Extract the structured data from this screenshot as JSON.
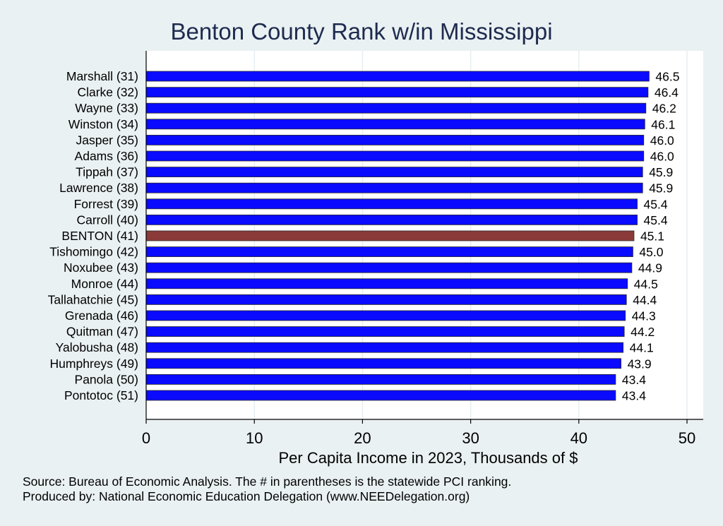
{
  "title": "Benton County Rank w/in Mississippi",
  "footer": {
    "source": "Source: Bureau of Economic Analysis. The # in parentheses is the statewide PCI ranking.",
    "produced": "Produced by: National Economic Education Delegation (www.NEEDelegation.org)"
  },
  "colors": {
    "background": "#eaf1f3",
    "plot_background": "#ffffff",
    "bar": "#0a0aff",
    "highlight_bar": "#8b3a3a",
    "title": "#1e2b4e"
  },
  "chart_data": {
    "type": "bar",
    "orientation": "horizontal",
    "title": "Benton County Rank w/in Mississippi",
    "xlabel": "Per Capita Income in 2023, Thousands of $",
    "ylabel": "",
    "xlim": [
      0,
      51.5
    ],
    "xticks": [
      0,
      10,
      20,
      30,
      40,
      50
    ],
    "grid": true,
    "highlight": "BENTON (41)",
    "categories": [
      "Marshall (31)",
      "Clarke (32)",
      "Wayne (33)",
      "Winston (34)",
      "Jasper (35)",
      "Adams (36)",
      "Tippah (37)",
      "Lawrence (38)",
      "Forrest (39)",
      "Carroll (40)",
      "BENTON (41)",
      "Tishomingo (42)",
      "Noxubee (43)",
      "Monroe (44)",
      "Tallahatchie (45)",
      "Grenada (46)",
      "Quitman (47)",
      "Yalobusha (48)",
      "Humphreys (49)",
      "Panola (50)",
      "Pontotoc (51)"
    ],
    "values": [
      46.5,
      46.4,
      46.2,
      46.1,
      46.0,
      46.0,
      45.9,
      45.9,
      45.4,
      45.4,
      45.1,
      45.0,
      44.9,
      44.5,
      44.4,
      44.3,
      44.2,
      44.1,
      43.9,
      43.4,
      43.4
    ],
    "value_labels": [
      "46.5",
      "46.4",
      "46.2",
      "46.1",
      "46.0",
      "46.0",
      "45.9",
      "45.9",
      "45.4",
      "45.4",
      "45.1",
      "45.0",
      "44.9",
      "44.5",
      "44.4",
      "44.3",
      "44.2",
      "44.1",
      "43.9",
      "43.4",
      "43.4"
    ]
  }
}
